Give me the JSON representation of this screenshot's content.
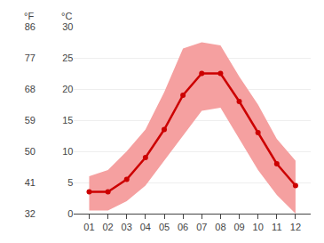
{
  "chart_data": {
    "type": "line",
    "categories": [
      "01",
      "02",
      "03",
      "04",
      "05",
      "06",
      "07",
      "08",
      "09",
      "10",
      "11",
      "12"
    ],
    "values": [
      3.5,
      3.5,
      5.5,
      9.0,
      13.5,
      19.0,
      22.5,
      22.5,
      18.0,
      13.0,
      8.0,
      4.5
    ],
    "max": [
      6.0,
      7.0,
      10.0,
      13.5,
      19.5,
      26.5,
      27.5,
      27.0,
      22.0,
      17.5,
      12.0,
      8.5
    ],
    "min": [
      0.5,
      0.5,
      2.0,
      4.5,
      8.5,
      12.5,
      16.5,
      17.0,
      12.0,
      7.0,
      3.0,
      0.0
    ],
    "color": "#cc0000",
    "band_color": "#f5a0a0",
    "marker": "circle",
    "ylabel": "°C",
    "ylim": [
      0,
      30
    ],
    "yticks": [
      0,
      5,
      10,
      15,
      20,
      25,
      30
    ],
    "y2label": "°F",
    "y2lim": [
      32,
      86
    ],
    "y2ticks": [
      32,
      41,
      50,
      59,
      68,
      77,
      86
    ],
    "grid": true
  }
}
